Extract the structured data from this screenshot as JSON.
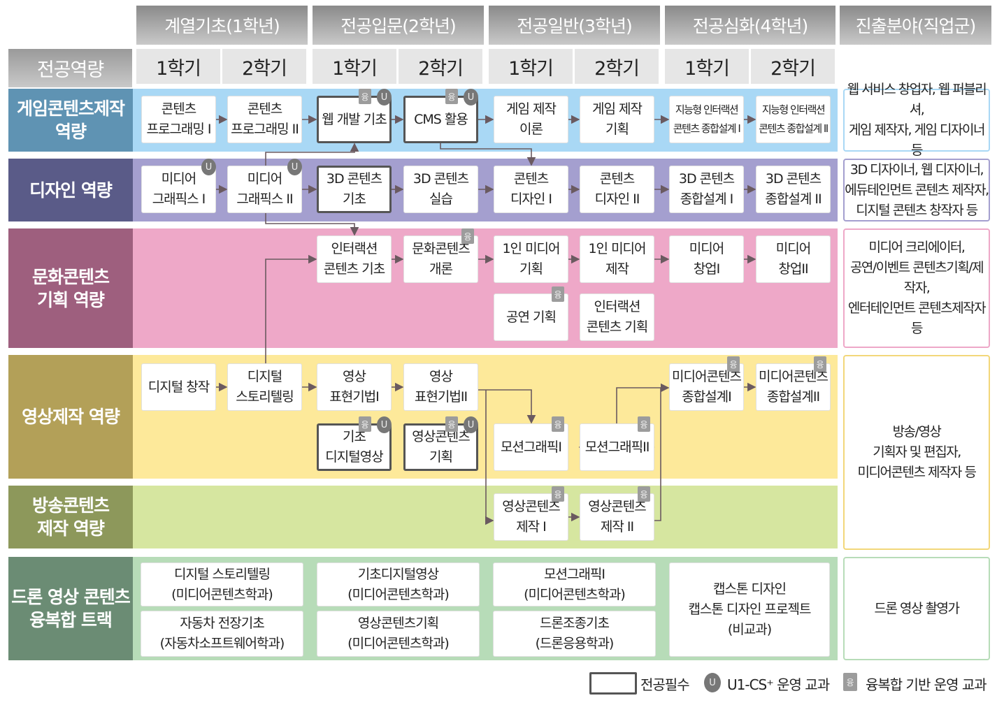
{
  "header": {
    "corner_label": "전공역량",
    "years": [
      "계열기초(1학년)",
      "전공입문(2학년)",
      "전공일반(3학년)",
      "전공심화(4학년)",
      "진출분야(직업군)"
    ],
    "semesters": [
      "1학기",
      "2학기",
      "1학기",
      "2학기",
      "1학기",
      "2학기",
      "1학기",
      "2학기"
    ]
  },
  "rows": [
    {
      "label": "게임콘텐츠제작\n역량",
      "color": "#a9d8f5",
      "label_color": "#5f93b3",
      "career": "웹 서비스 창업자, 웹 퍼블리셔,\n게임 제작자, 게임 디자이너 등",
      "career_border": "#a9d8f5"
    },
    {
      "label": "디자인 역량",
      "color": "#a49fcf",
      "label_color": "#5a5b88",
      "career": "3D 디자이너, 웹 디자이너,\n에듀테인먼트 콘텐츠 제작자,\n디지털 콘텐츠 창작자 등",
      "career_border": "#a49fcf"
    },
    {
      "label": "문화콘텐츠\n기획 역량",
      "color": "#eea8c8",
      "label_color": "#9e5f7e",
      "career": "미디어 크리에이터,\n공연/이벤트 콘텐츠기획/제작자,\n엔터테인먼트 콘텐츠제작자 등",
      "career_border": "#eea8c8"
    },
    {
      "label": "영상제작 역량",
      "color": "#fde99a",
      "label_color": "#b3a058",
      "career": "방송/영상\n기획자 및 편집자,\n미디어콘텐츠 제작자 등",
      "career_border": "#f2d77a"
    },
    {
      "label": "방송콘텐츠\n제작 역량",
      "color": "#d6e6a0",
      "label_color": "#8d985b",
      "career": "",
      "career_border": "#f2d77a"
    },
    {
      "label": "드론 영상 콘텐츠\n융복합 트랙",
      "color": "#b7dcb8",
      "label_color": "#6b8c74",
      "career": "드론 영상 촬영가",
      "career_border": "#b7dcb8"
    }
  ],
  "courses": [
    {
      "name": "콘텐츠\n프로그래밍 I",
      "semester": "1학년 1학기",
      "row": "게임"
    },
    {
      "name": "콘텐츠\n프로그래밍 II",
      "semester": "1학년 2학기",
      "row": "게임"
    },
    {
      "name": "웹 개발 기초",
      "semester": "2학년 1학기",
      "required": true,
      "badges": [
        "융",
        "U"
      ]
    },
    {
      "name": "CMS 활용",
      "semester": "2학년 2학기",
      "required": true,
      "badges": [
        "융",
        "U"
      ]
    },
    {
      "name": "게임 제작\n이론",
      "semester": "3학년 1학기"
    },
    {
      "name": "게임 제작\n기획",
      "semester": "3학년 2학기"
    },
    {
      "name": "지능형 인터랙션\n콘텐츠 종합설계 I",
      "semester": "4학년 1학기"
    },
    {
      "name": "지능형 인터랙션\n콘텐츠 종합설계 II",
      "semester": "4학년 2학기"
    },
    {
      "name": "미디어\n그래픽스 I",
      "semester": "1학년 1학기",
      "badges": [
        "U"
      ]
    },
    {
      "name": "미디어\n그래픽스 II",
      "semester": "1학년 2학기",
      "badges": [
        "U"
      ]
    },
    {
      "name": "3D 콘텐츠\n기초",
      "semester": "2학년 1학기",
      "required": true
    },
    {
      "name": "3D 콘텐츠\n실습",
      "semester": "2학년 2학기"
    },
    {
      "name": "콘텐츠\n디자인 I",
      "semester": "3학년 1학기"
    },
    {
      "name": "콘텐츠\n디자인 II",
      "semester": "3학년 2학기"
    },
    {
      "name": "3D 콘텐츠\n종합설계 I",
      "semester": "4학년 1학기"
    },
    {
      "name": "3D 콘텐츠\n종합설계 II",
      "semester": "4학년 2학기"
    },
    {
      "name": "인터랙션\n콘텐츠 기초",
      "semester": "2학년 1학기"
    },
    {
      "name": "문화콘텐츠\n개론",
      "semester": "2학년 2학기",
      "badges": [
        "융"
      ]
    },
    {
      "name": "1인 미디어\n기획",
      "semester": "3학년 1학기"
    },
    {
      "name": "1인 미디어\n제작",
      "semester": "3학년 2학기"
    },
    {
      "name": "미디어\n창업I",
      "semester": "4학년 1학기"
    },
    {
      "name": "미디어\n창업II",
      "semester": "4학년 2학기"
    },
    {
      "name": "공연 기획",
      "semester": "3학년 1학기",
      "badges": [
        "융"
      ]
    },
    {
      "name": "인터랙션\n콘텐츠 기획",
      "semester": "3학년 2학기"
    },
    {
      "name": "디지털 창작",
      "semester": "1학년 1학기"
    },
    {
      "name": "디지털\n스토리텔링",
      "semester": "1학년 2학기"
    },
    {
      "name": "영상\n표현기법I",
      "semester": "2학년 1학기"
    },
    {
      "name": "영상\n표현기법II",
      "semester": "2학년 2학기"
    },
    {
      "name": "미디어콘텐츠\n종합설계I",
      "semester": "4학년 1학기",
      "badges": [
        "융"
      ]
    },
    {
      "name": "미디어콘텐츠\n종합설계II",
      "semester": "4학년 2학기",
      "badges": [
        "융"
      ]
    },
    {
      "name": "기초\n디지털영상",
      "semester": "2학년 1학기",
      "required": true,
      "badges": [
        "융",
        "U"
      ]
    },
    {
      "name": "영상콘텐츠\n기획",
      "semester": "2학년 2학기",
      "required": true,
      "badges": [
        "융",
        "U"
      ]
    },
    {
      "name": "모션그래픽I",
      "semester": "3학년 1학기",
      "badges": [
        "융"
      ]
    },
    {
      "name": "모션그래픽II",
      "semester": "3학년 2학기",
      "badges": [
        "융"
      ]
    },
    {
      "name": "영상콘텐츠\n제작 I",
      "semester": "3학년 1학기",
      "badges": [
        "융"
      ]
    },
    {
      "name": "영상콘텐츠\n제작 II",
      "semester": "3학년 2학기",
      "badges": [
        "융"
      ]
    },
    {
      "name": "디지털 스토리텔링\n(미디어콘텐츠학과)",
      "semester": "1학년"
    },
    {
      "name": "자동차 전장기초\n(자동차소프트웨어학과)",
      "semester": "1학년"
    },
    {
      "name": "기초디지털영상\n(미디어콘텐츠학과)",
      "semester": "2학년"
    },
    {
      "name": "영상콘텐츠기획\n(미디어콘텐츠학과)",
      "semester": "2학년"
    },
    {
      "name": "모션그래픽I\n(미디어콘텐츠학과)",
      "semester": "3학년"
    },
    {
      "name": "드론조종기초\n(드론응용학과)",
      "semester": "3학년"
    },
    {
      "name": "캡스톤 디자인\n캡스톤 디자인 프로젝트\n(비교과)",
      "semester": "4학년"
    }
  ],
  "legend": {
    "required": "전공필수",
    "u_badge": "U",
    "u_label": "U1-CS⁺ 운영 교과",
    "y_badge": "융",
    "y_label": "융복합 기반 운영 교과"
  },
  "colors": {
    "arrow": "#6a5a60",
    "badge_u": "#777777",
    "badge_y": "#9c9c9c"
  }
}
